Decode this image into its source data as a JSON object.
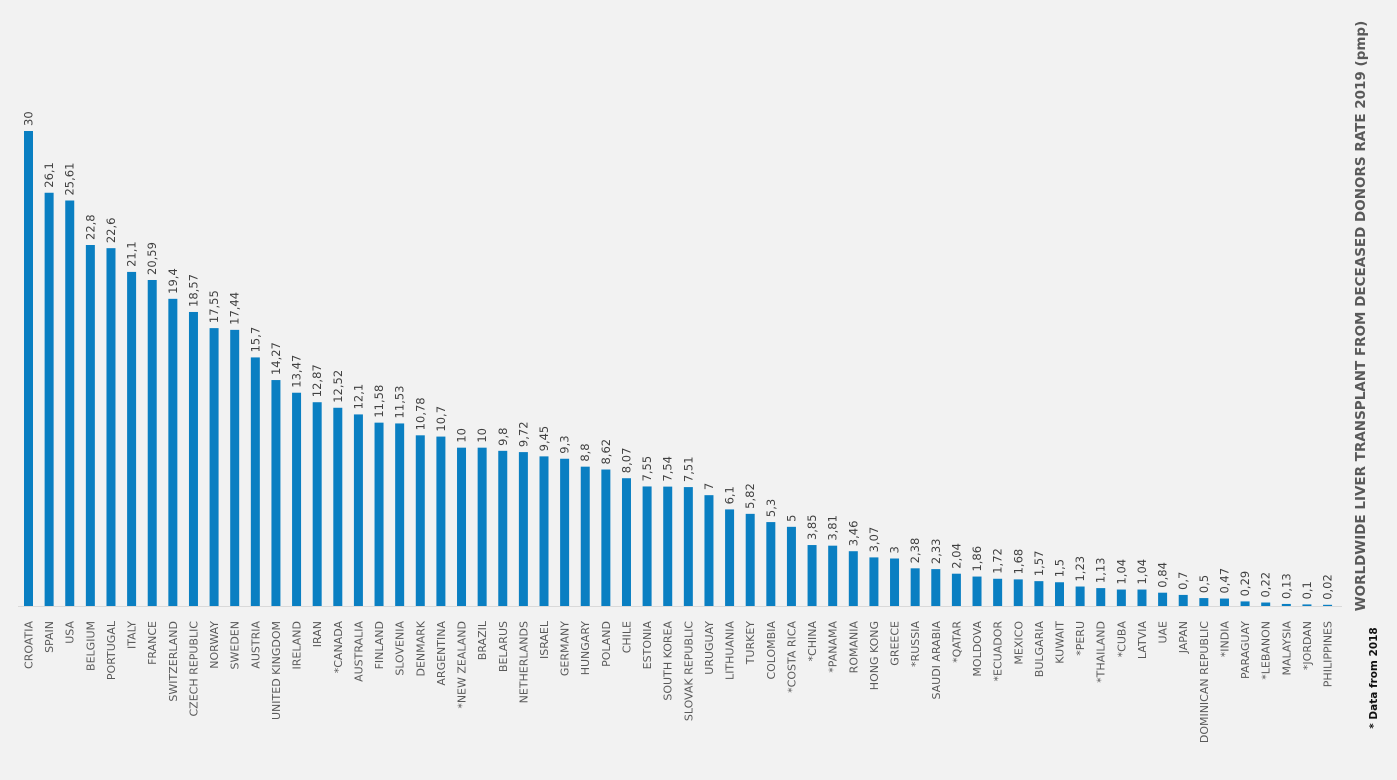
{
  "chart_data": {
    "type": "bar",
    "title": "WORLDWIDE LIVER TRANSPLANT FROM DECEASED DONORS RATE 2019 (pmp)",
    "footnote": "* Data from 2018",
    "bar_color": "#0a7fc2",
    "ylim": [
      0,
      30
    ],
    "grid": false,
    "categories": [
      "CROATIA",
      "SPAIN",
      "USA",
      "BELGIUM",
      "PORTUGAL",
      "ITALY",
      "FRANCE",
      "SWITZERLAND",
      "CZECH REPUBLIC",
      "NORWAY",
      "SWEDEN",
      "AUSTRIA",
      "UNITED KINGDOM",
      "IRELAND",
      "IRAN",
      "*CANADA",
      "AUSTRALIA",
      "FINLAND",
      "SLOVENIA",
      "DENMARK",
      "ARGENTINA",
      "*NEW ZEALAND",
      "BRAZIL",
      "BELARUS",
      "NETHERLANDS",
      "ISRAEL",
      "GERMANY",
      "HUNGARY",
      "POLAND",
      "CHILE",
      "ESTONIA",
      "SOUTH KOREA",
      "SLOVAK REPUBLIC",
      "URUGUAY",
      "LITHUANIA",
      "TURKEY",
      "COLOMBIA",
      "*COSTA RICA",
      "*CHINA",
      "*PANAMA",
      "ROMANIA",
      "HONG KONG",
      "GREECE",
      "*RUSSIA",
      "SAUDI ARABIA",
      "*QATAR",
      "MOLDOVA",
      "*ECUADOR",
      "MEXICO",
      "BULGARIA",
      "KUWAIT",
      "*PERU",
      "*THAILAND",
      "*CUBA",
      "LATVIA",
      "UAE",
      "JAPAN",
      "DOMINICAN REPUBLIC",
      "*INDIA",
      "PARAGUAY",
      "*LEBANON",
      "MALAYSIA",
      "*JORDAN",
      "PHILIPPINES"
    ],
    "values": [
      30,
      26.1,
      25.61,
      22.8,
      22.6,
      21.1,
      20.59,
      19.4,
      18.57,
      17.55,
      17.44,
      15.7,
      14.27,
      13.47,
      12.87,
      12.52,
      12.1,
      11.58,
      11.53,
      10.78,
      10.7,
      10,
      10,
      9.8,
      9.72,
      9.45,
      9.3,
      8.8,
      8.62,
      8.07,
      7.55,
      7.54,
      7.51,
      7,
      6.1,
      5.82,
      5.3,
      5,
      3.85,
      3.81,
      3.46,
      3.07,
      3,
      2.38,
      2.33,
      2.04,
      1.86,
      1.72,
      1.68,
      1.57,
      1.5,
      1.23,
      1.13,
      1.04,
      1.04,
      0.84,
      0.7,
      0.5,
      0.47,
      0.29,
      0.22,
      0.13,
      0.1,
      0.02
    ],
    "labels": [
      "30",
      "26,1",
      "25,61",
      "22,8",
      "22,6",
      "21,1",
      "20,59",
      "19,4",
      "18,57",
      "17,55",
      "17,44",
      "15,7",
      "14,27",
      "13,47",
      "12,87",
      "12,52",
      "12,1",
      "11,58",
      "11,53",
      "10,78",
      "10,7",
      "10",
      "10",
      "9,8",
      "9,72",
      "9,45",
      "9,3",
      "8,8",
      "8,62",
      "8,07",
      "7,55",
      "7,54",
      "7,51",
      "7",
      "6,1",
      "5,82",
      "5,3",
      "5",
      "3,85",
      "3,81",
      "3,46",
      "3,07",
      "3",
      "2,38",
      "2,33",
      "2,04",
      "1,86",
      "1,72",
      "1,68",
      "1,57",
      "1,5",
      "1,23",
      "1,13",
      "1,04",
      "1,04",
      "0,84",
      "0,7",
      "0,5",
      "0,47",
      "0,29",
      "0,22",
      "0,13",
      "0,1",
      "0,02"
    ]
  }
}
